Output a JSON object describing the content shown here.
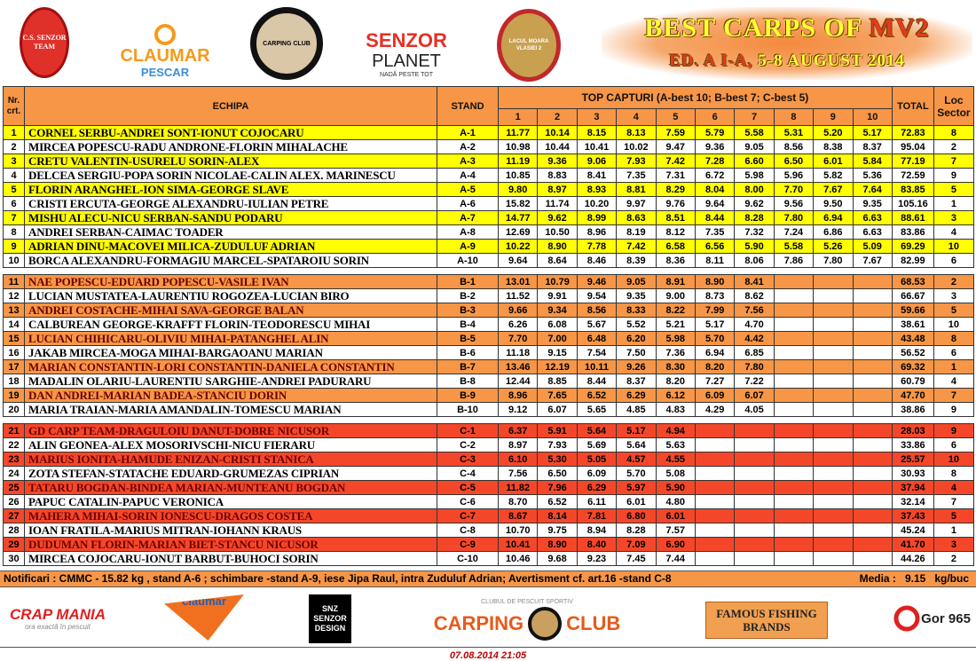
{
  "header": {
    "logos": [
      "C.S. SENZOR TEAM",
      "CLAUMAR",
      "PESCAR",
      "CARPING CLUB",
      "SENZOR",
      "PLANET",
      "NADĂ PESTE TOT",
      "LACUL MOARA VLASIEI 2"
    ],
    "title_line1_a": "BEST CARPS OF ",
    "title_line1_b": "MV2",
    "title_line2_a": "ED. A I-A, ",
    "title_line2_b": "5-8 AUGUST 2014"
  },
  "table": {
    "headers": {
      "nr": "Nr. crt.",
      "team": "ECHIPA",
      "stand": "STAND",
      "top": "TOP CAPTURI (A-best 10; B-best 7; C-best 5)",
      "total": "TOTAL",
      "loc": "Loc Sector",
      "catch_cols": [
        "1",
        "2",
        "3",
        "4",
        "5",
        "6",
        "7",
        "8",
        "9",
        "10"
      ]
    },
    "sectors": [
      {
        "sector": "A",
        "rows": [
          {
            "nr": "1",
            "team": "CORNEL SERBU-ANDREI SONT-IONUT COJOCARU",
            "stand": "A-1",
            "catches": [
              "11.77",
              "10.14",
              "8.15",
              "8.13",
              "7.59",
              "5.79",
              "5.58",
              "5.31",
              "5.20",
              "5.17"
            ],
            "total": "72.83",
            "loc": "8"
          },
          {
            "nr": "2",
            "team": "MIRCEA POPESCU-RADU ANDRONE-FLORIN MIHALACHE",
            "stand": "A-2",
            "catches": [
              "10.98",
              "10.44",
              "10.41",
              "10.02",
              "9.47",
              "9.36",
              "9.05",
              "8.56",
              "8.38",
              "8.37"
            ],
            "total": "95.04",
            "loc": "2"
          },
          {
            "nr": "3",
            "team": "CRETU VALENTIN-USURELU SORIN-ALEX",
            "stand": "A-3",
            "catches": [
              "11.19",
              "9.36",
              "9.06",
              "7.93",
              "7.42",
              "7.28",
              "6.60",
              "6.50",
              "6.01",
              "5.84"
            ],
            "total": "77.19",
            "loc": "7"
          },
          {
            "nr": "4",
            "team": "DELCEA SERGIU-POPA SORIN NICOLAE-CALIN ALEX. MARINESCU",
            "stand": "A-4",
            "catches": [
              "10.85",
              "8.83",
              "8.41",
              "7.35",
              "7.31",
              "6.72",
              "5.98",
              "5.96",
              "5.82",
              "5.36"
            ],
            "total": "72.59",
            "loc": "9"
          },
          {
            "nr": "5",
            "team": "FLORIN ARANGHEL-ION SIMA-GEORGE SLAVE",
            "stand": "A-5",
            "catches": [
              "9.80",
              "8.97",
              "8.93",
              "8.81",
              "8.29",
              "8.04",
              "8.00",
              "7.70",
              "7.67",
              "7.64"
            ],
            "total": "83.85",
            "loc": "5"
          },
          {
            "nr": "6",
            "team": "CRISTI ERCUTA-GEORGE ALEXANDRU-IULIAN PETRE",
            "stand": "A-6",
            "catches": [
              "15.82",
              "11.74",
              "10.20",
              "9.97",
              "9.76",
              "9.64",
              "9.62",
              "9.56",
              "9.50",
              "9.35"
            ],
            "total": "105.16",
            "loc": "1"
          },
          {
            "nr": "7",
            "team": "MISHU ALECU-NICU SERBAN-SANDU PODARU",
            "stand": "A-7",
            "catches": [
              "14.77",
              "9.62",
              "8.99",
              "8.63",
              "8.51",
              "8.44",
              "8.28",
              "7.80",
              "6.94",
              "6.63"
            ],
            "total": "88.61",
            "loc": "3"
          },
          {
            "nr": "8",
            "team": "ANDREI SERBAN-CAIMAC TOADER",
            "stand": "A-8",
            "catches": [
              "12.69",
              "10.50",
              "8.96",
              "8.19",
              "8.12",
              "7.35",
              "7.32",
              "7.24",
              "6.86",
              "6.63"
            ],
            "total": "83.86",
            "loc": "4"
          },
          {
            "nr": "9",
            "team": "ADRIAN DINU-MACOVEI MILICA-ZUDULUF ADRIAN",
            "stand": "A-9",
            "catches": [
              "10.22",
              "8.90",
              "7.78",
              "7.42",
              "6.58",
              "6.56",
              "5.90",
              "5.58",
              "5.26",
              "5.09"
            ],
            "total": "69.29",
            "loc": "10"
          },
          {
            "nr": "10",
            "team": "BORCA ALEXANDRU-FORMAGIU MARCEL-SPATAROIU SORIN",
            "stand": "A-10",
            "catches": [
              "9.64",
              "8.64",
              "8.46",
              "8.39",
              "8.36",
              "8.11",
              "8.06",
              "7.86",
              "7.80",
              "7.67"
            ],
            "total": "82.99",
            "loc": "6"
          }
        ]
      },
      {
        "sector": "B",
        "rows": [
          {
            "nr": "11",
            "team": "NAE POPESCU-EDUARD POPESCU-VASILE IVAN",
            "stand": "B-1",
            "catches": [
              "13.01",
              "10.79",
              "9.46",
              "9.05",
              "8.91",
              "8.90",
              "8.41",
              "",
              "",
              ""
            ],
            "total": "68.53",
            "loc": "2"
          },
          {
            "nr": "12",
            "team": "LUCIAN MUSTATEA-LAURENTIU ROGOZEA-LUCIAN BIRO",
            "stand": "B-2",
            "catches": [
              "11.52",
              "9.91",
              "9.54",
              "9.35",
              "9.00",
              "8.73",
              "8.62",
              "",
              "",
              ""
            ],
            "total": "66.67",
            "loc": "3"
          },
          {
            "nr": "13",
            "team": "ANDREI COSTACHE-MIHAI SAVA-GEORGE BALAN",
            "stand": "B-3",
            "catches": [
              "9.66",
              "9.34",
              "8.56",
              "8.33",
              "8.22",
              "7.99",
              "7.56",
              "",
              "",
              ""
            ],
            "total": "59.66",
            "loc": "5"
          },
          {
            "nr": "14",
            "team": "CALBUREAN GEORGE-KRAFFT FLORIN-TEODORESCU MIHAI",
            "stand": "B-4",
            "catches": [
              "6.26",
              "6.08",
              "5.67",
              "5.52",
              "5.21",
              "5.17",
              "4.70",
              "",
              "",
              ""
            ],
            "total": "38.61",
            "loc": "10"
          },
          {
            "nr": "15",
            "team": "LUCIAN CHIHICARU-OLIVIU MIHAI-PATANGHEL ALIN",
            "stand": "B-5",
            "catches": [
              "7.70",
              "7.00",
              "6.48",
              "6.20",
              "5.98",
              "5.70",
              "4.42",
              "",
              "",
              ""
            ],
            "total": "43.48",
            "loc": "8"
          },
          {
            "nr": "16",
            "team": "JAKAB MIRCEA-MOGA MIHAI-BARGAOANU MARIAN",
            "stand": "B-6",
            "catches": [
              "11.18",
              "9.15",
              "7.54",
              "7.50",
              "7.36",
              "6.94",
              "6.85",
              "",
              "",
              ""
            ],
            "total": "56.52",
            "loc": "6"
          },
          {
            "nr": "17",
            "team": "MARIAN CONSTANTIN-LORI CONSTANTIN-DANIELA CONSTANTIN",
            "stand": "B-7",
            "catches": [
              "13.46",
              "12.19",
              "10.11",
              "9.26",
              "8.30",
              "8.20",
              "7.80",
              "",
              "",
              ""
            ],
            "total": "69.32",
            "loc": "1"
          },
          {
            "nr": "18",
            "team": "MADALIN OLARIU-LAURENTIU SARGHIE-ANDREI PADURARU",
            "stand": "B-8",
            "catches": [
              "12.44",
              "8.85",
              "8.44",
              "8.37",
              "8.20",
              "7.27",
              "7.22",
              "",
              "",
              ""
            ],
            "total": "60.79",
            "loc": "4"
          },
          {
            "nr": "19",
            "team": "DAN ANDREI-MARIAN BADEA-STANCIU DORIN",
            "stand": "B-9",
            "catches": [
              "8.96",
              "7.65",
              "6.52",
              "6.29",
              "6.12",
              "6.09",
              "6.07",
              "",
              "",
              ""
            ],
            "total": "47.70",
            "loc": "7"
          },
          {
            "nr": "20",
            "team": "MARIA TRAIAN-MARIA AMANDALIN-TOMESCU MARIAN",
            "stand": "B-10",
            "catches": [
              "9.12",
              "6.07",
              "5.65",
              "4.85",
              "4.83",
              "4.29",
              "4.05",
              "",
              "",
              ""
            ],
            "total": "38.86",
            "loc": "9"
          }
        ]
      },
      {
        "sector": "C",
        "rows": [
          {
            "nr": "21",
            "team": "GD CARP TEAM-DRAGULOIU DANUT-DOBRE NICUSOR",
            "stand": "C-1",
            "catches": [
              "6.37",
              "5.91",
              "5.64",
              "5.17",
              "4.94",
              "",
              "",
              "",
              "",
              ""
            ],
            "total": "28.03",
            "loc": "9"
          },
          {
            "nr": "22",
            "team": "ALIN GEONEA-ALEX MOSORIVSCHI-NICU FIERARU",
            "stand": "C-2",
            "catches": [
              "8.97",
              "7.93",
              "5.69",
              "5.64",
              "5.63",
              "",
              "",
              "",
              "",
              ""
            ],
            "total": "33.86",
            "loc": "6"
          },
          {
            "nr": "23",
            "team": "MARIUS IONITA-HAMUDE ENIZAN-CRISTI STANICA",
            "stand": "C-3",
            "catches": [
              "6.10",
              "5.30",
              "5.05",
              "4.57",
              "4.55",
              "",
              "",
              "",
              "",
              ""
            ],
            "total": "25.57",
            "loc": "10"
          },
          {
            "nr": "24",
            "team": "ZOTA STEFAN-STATACHE EDUARD-GRUMEZAS CIPRIAN",
            "stand": "C-4",
            "catches": [
              "7.56",
              "6.50",
              "6.09",
              "5.70",
              "5.08",
              "",
              "",
              "",
              "",
              ""
            ],
            "total": "30.93",
            "loc": "8"
          },
          {
            "nr": "25",
            "team": "TATARU BOGDAN-BINDEA MARIAN-MUNTEANU BOGDAN",
            "stand": "C-5",
            "catches": [
              "11.82",
              "7.96",
              "6.29",
              "5.97",
              "5.90",
              "",
              "",
              "",
              "",
              ""
            ],
            "total": "37.94",
            "loc": "4"
          },
          {
            "nr": "26",
            "team": "PAPUC CATALIN-PAPUC VERONICA",
            "stand": "C-6",
            "catches": [
              "8.70",
              "6.52",
              "6.11",
              "6.01",
              "4.80",
              "",
              "",
              "",
              "",
              ""
            ],
            "total": "32.14",
            "loc": "7"
          },
          {
            "nr": "27",
            "team": "MAHERA MIHAI-SORIN IONESCU-DRAGOS COSTEA",
            "stand": "C-7",
            "catches": [
              "8.67",
              "8.14",
              "7.81",
              "6.80",
              "6.01",
              "",
              "",
              "",
              "",
              ""
            ],
            "total": "37.43",
            "loc": "5"
          },
          {
            "nr": "28",
            "team": "IOAN FRATILA-MARIUS MITRAN-IOHANN KRAUS",
            "stand": "C-8",
            "catches": [
              "10.70",
              "9.75",
              "8.94",
              "8.28",
              "7.57",
              "",
              "",
              "",
              "",
              ""
            ],
            "total": "45.24",
            "loc": "1"
          },
          {
            "nr": "29",
            "team": "DUDUMAN FLORIN-MARIAN BIET-STANCU NICUSOR",
            "stand": "C-9",
            "catches": [
              "10.41",
              "8.90",
              "8.40",
              "7.09",
              "6.90",
              "",
              "",
              "",
              "",
              ""
            ],
            "total": "41.70",
            "loc": "3"
          },
          {
            "nr": "30",
            "team": "MIRCEA COJOCARU-IONUT BARBUT-BUHOCI SORIN",
            "stand": "C-10",
            "catches": [
              "10.46",
              "9.68",
              "9.23",
              "7.45",
              "7.44",
              "",
              "",
              "",
              "",
              ""
            ],
            "total": "44.26",
            "loc": "2"
          }
        ]
      }
    ]
  },
  "notifications": {
    "text": "Notificari : CMMC -  15.82 kg , stand A-6 ; schimbare -stand A-9, iese Jipa Raul, intra Zuduluf Adrian; Avertisment cf. art.16 -stand C-8",
    "media_label": "Media :",
    "media_value": "9.15",
    "media_unit": "kg/buc"
  },
  "footer": {
    "sponsors": [
      "CRAP MANIA",
      "ora exactă în pescuit",
      "claumar",
      "SNZ SENZOR DESIGN",
      "CLUBUL DE PESCUIT SPORTIV",
      "CARPING",
      "CLUB",
      "FAMOUS FISHING BRANDS",
      "Gor 965"
    ],
    "timestamp": "07.08.2014 21:05"
  },
  "colors": {
    "header": "#f79646",
    "sector_a": "#ffff00",
    "sector_b": "#f79646",
    "sector_c": "#f4472a",
    "title_yellow": "#ffff33",
    "title_red": "#e53a1e"
  }
}
